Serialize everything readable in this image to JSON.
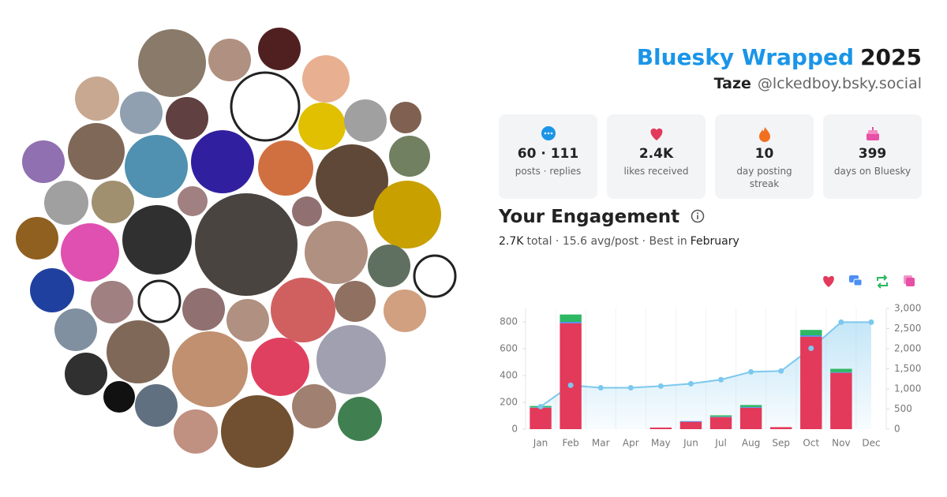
{
  "header": {
    "title": "Bluesky Wrapped",
    "year": "2025",
    "name": "Taze",
    "handle": "@lckedboy.bsky.social"
  },
  "stats": [
    {
      "value": "60 · 111",
      "label": "posts · replies"
    },
    {
      "value": "2.4K",
      "label": "likes received"
    },
    {
      "value": "10",
      "label": "day posting streak"
    },
    {
      "value": "399",
      "label": "days on Bluesky"
    }
  ],
  "engagement": {
    "title": "Your Engagement",
    "total": "2.7K",
    "summary": "total · 15.6 avg/post · Best in",
    "best_month": "February"
  },
  "chart_data": {
    "type": "bar",
    "stacked": true,
    "categories": [
      "Jan",
      "Feb",
      "Mar",
      "Apr",
      "May",
      "Jun",
      "Jul",
      "Aug",
      "Sep",
      "Oct",
      "Nov",
      "Dec"
    ],
    "series": [
      {
        "color": "#e3395a",
        "values": [
          160,
          790,
          0,
          0,
          12,
          55,
          90,
          160,
          15,
          690,
          420,
          0
        ]
      },
      {
        "color": "#4c8ff5",
        "values": [
          3,
          10,
          0,
          0,
          0,
          5,
          3,
          5,
          0,
          10,
          5,
          0
        ]
      },
      {
        "color": "#2eb862",
        "values": [
          10,
          55,
          0,
          0,
          0,
          0,
          10,
          15,
          0,
          40,
          25,
          0
        ]
      },
      {
        "color": "#e84fa6",
        "values": [
          0,
          0,
          0,
          0,
          0,
          0,
          0,
          0,
          0,
          0,
          0,
          0
        ]
      },
      {
        "color": "#7cc8ee",
        "type": "line",
        "axis": "y2",
        "values": [
          560,
          1090,
          1030,
          1030,
          1070,
          1130,
          1230,
          1425,
          1445,
          2010,
          2660,
          2660
        ]
      }
    ],
    "ylim": [
      0,
      900
    ],
    "yticks": [
      0,
      200,
      400,
      600,
      800
    ],
    "y2lim": [
      0,
      3000
    ],
    "y2ticks": [
      0,
      500,
      {
        "value": 1000,
        "label": "1,000"
      },
      {
        "value": 1500,
        "label": "1,500"
      },
      {
        "value": 2000,
        "label": "2,000"
      },
      {
        "value": 2500,
        "label": "2,500"
      },
      {
        "value": 3000,
        "label": "3,000"
      }
    ]
  }
}
